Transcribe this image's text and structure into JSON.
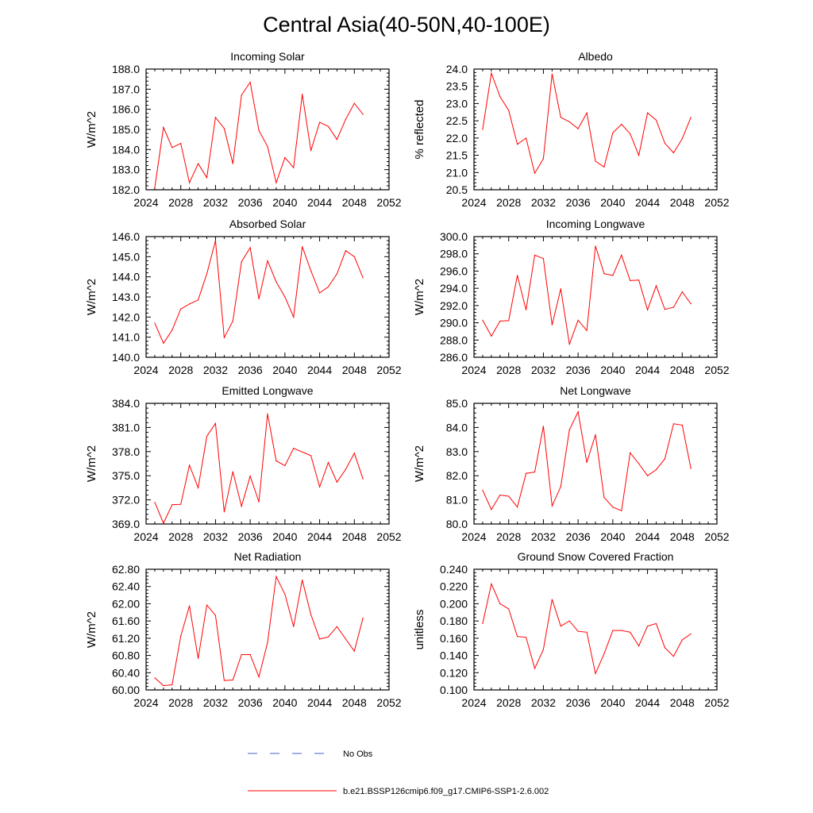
{
  "figure_title": "Central Asia(40-50N,40-100E)",
  "colors": {
    "model": "#ff0000",
    "obs": "#4b5fcf",
    "axis": "#000000"
  },
  "legend": {
    "obs_label": "No Obs",
    "model_label": "b.e21.BSSP126cmip6.f09_g17.CMIP6-SSP1-2.6.002"
  },
  "chart_data": [
    {
      "type": "line",
      "title": "Incoming Solar",
      "ylabel": "W/m^2",
      "xlim": [
        2024,
        2052
      ],
      "xticks": [
        "2024",
        "2028",
        "2032",
        "2036",
        "2040",
        "2044",
        "2048",
        "2052"
      ],
      "ylim": [
        182.0,
        188.0
      ],
      "yticks": [
        "182.0",
        "183.0",
        "184.0",
        "185.0",
        "186.0",
        "187.0",
        "188.0"
      ],
      "x": [
        2025,
        2026,
        2027,
        2028,
        2029,
        2030,
        2031,
        2032,
        2033,
        2034,
        2035,
        2036,
        2037,
        2038,
        2039,
        2040,
        2041,
        2042,
        2043,
        2044,
        2045,
        2046,
        2047,
        2048,
        2049
      ],
      "values": [
        182.1,
        185.1,
        184.1,
        184.3,
        182.35,
        183.3,
        182.6,
        185.6,
        185.05,
        183.3,
        186.7,
        187.35,
        184.95,
        184.15,
        182.35,
        183.6,
        183.1,
        186.75,
        183.95,
        185.35,
        185.15,
        184.5,
        185.5,
        186.3,
        185.75
      ]
    },
    {
      "type": "line",
      "title": "Albedo",
      "ylabel": "% reflected",
      "xlim": [
        2024,
        2052
      ],
      "xticks": [
        "2024",
        "2028",
        "2032",
        "2036",
        "2040",
        "2044",
        "2048",
        "2052"
      ],
      "ylim": [
        20.5,
        24.0
      ],
      "yticks": [
        "20.5",
        "21.0",
        "21.5",
        "22.0",
        "22.5",
        "23.0",
        "23.5",
        "24.0"
      ],
      "x": [
        2025,
        2026,
        2027,
        2028,
        2029,
        2030,
        2031,
        2032,
        2033,
        2034,
        2035,
        2036,
        2037,
        2038,
        2039,
        2040,
        2041,
        2042,
        2043,
        2044,
        2045,
        2046,
        2047,
        2048,
        2049
      ],
      "values": [
        22.25,
        23.88,
        23.2,
        22.8,
        21.82,
        22.0,
        20.98,
        21.4,
        23.86,
        22.6,
        22.47,
        22.27,
        22.73,
        21.33,
        21.16,
        22.15,
        22.4,
        22.12,
        21.5,
        22.73,
        22.52,
        21.85,
        21.57,
        21.98,
        22.6
      ]
    },
    {
      "type": "line",
      "title": "Absorbed Solar",
      "ylabel": "W/m^2",
      "xlim": [
        2024,
        2052
      ],
      "xticks": [
        "2024",
        "2028",
        "2032",
        "2036",
        "2040",
        "2044",
        "2048",
        "2052"
      ],
      "ylim": [
        140.0,
        146.0
      ],
      "yticks": [
        "140.0",
        "141.0",
        "142.0",
        "143.0",
        "144.0",
        "145.0",
        "146.0"
      ],
      "x": [
        2025,
        2026,
        2027,
        2028,
        2029,
        2030,
        2031,
        2032,
        2033,
        2034,
        2035,
        2036,
        2037,
        2038,
        2039,
        2040,
        2041,
        2042,
        2043,
        2044,
        2045,
        2046,
        2047,
        2048,
        2049
      ],
      "values": [
        141.7,
        140.7,
        141.35,
        142.4,
        142.65,
        142.85,
        144.15,
        145.8,
        140.98,
        141.8,
        144.75,
        145.45,
        142.9,
        144.8,
        143.75,
        143.0,
        142.0,
        145.5,
        144.3,
        143.2,
        143.5,
        144.15,
        145.3,
        145.0,
        143.95
      ]
    },
    {
      "type": "line",
      "title": "Incoming Longwave",
      "ylabel": "W/m^2",
      "xlim": [
        2024,
        2052
      ],
      "xticks": [
        "2024",
        "2028",
        "2032",
        "2036",
        "2040",
        "2044",
        "2048",
        "2052"
      ],
      "ylim": [
        286.0,
        300.0
      ],
      "yticks": [
        "286.0",
        "288.0",
        "290.0",
        "292.0",
        "294.0",
        "296.0",
        "298.0",
        "300.0"
      ],
      "x": [
        2025,
        2026,
        2027,
        2028,
        2029,
        2030,
        2031,
        2032,
        2033,
        2034,
        2035,
        2036,
        2037,
        2038,
        2039,
        2040,
        2041,
        2042,
        2043,
        2044,
        2045,
        2046,
        2047,
        2048,
        2049
      ],
      "values": [
        290.3,
        288.45,
        290.2,
        290.25,
        295.5,
        291.5,
        297.85,
        297.45,
        289.75,
        293.95,
        287.5,
        290.3,
        289.1,
        298.9,
        295.7,
        295.5,
        297.85,
        294.9,
        294.95,
        291.5,
        294.3,
        291.55,
        291.8,
        293.6,
        292.2
      ]
    },
    {
      "type": "line",
      "title": "Emitted Longwave",
      "ylabel": "W/m^2",
      "xlim": [
        2024,
        2052
      ],
      "xticks": [
        "2024",
        "2028",
        "2032",
        "2036",
        "2040",
        "2044",
        "2048",
        "2052"
      ],
      "ylim": [
        369.0,
        384.0
      ],
      "yticks": [
        "369.0",
        "372.0",
        "375.0",
        "378.0",
        "381.0",
        "384.0"
      ],
      "x": [
        2025,
        2026,
        2027,
        2028,
        2029,
        2030,
        2031,
        2032,
        2033,
        2034,
        2035,
        2036,
        2037,
        2038,
        2039,
        2040,
        2041,
        2042,
        2043,
        2044,
        2045,
        2046,
        2047,
        2048,
        2049
      ],
      "values": [
        371.7,
        369.1,
        371.4,
        371.45,
        376.3,
        373.5,
        379.9,
        381.5,
        370.5,
        375.5,
        371.2,
        374.95,
        371.75,
        382.7,
        376.85,
        376.25,
        378.4,
        377.95,
        377.5,
        373.6,
        376.65,
        374.2,
        375.8,
        377.8,
        374.6
      ]
    },
    {
      "type": "line",
      "title": "Net Longwave",
      "ylabel": "W/m^2",
      "xlim": [
        2024,
        2052
      ],
      "xticks": [
        "2024",
        "2028",
        "2032",
        "2036",
        "2040",
        "2044",
        "2048",
        "2052"
      ],
      "ylim": [
        80.0,
        85.0
      ],
      "yticks": [
        "80.0",
        "81.0",
        "82.0",
        "83.0",
        "84.0",
        "85.0"
      ],
      "x": [
        2025,
        2026,
        2027,
        2028,
        2029,
        2030,
        2031,
        2032,
        2033,
        2034,
        2035,
        2036,
        2037,
        2038,
        2039,
        2040,
        2041,
        2042,
        2043,
        2044,
        2045,
        2046,
        2047,
        2048,
        2049
      ],
      "values": [
        81.4,
        80.6,
        81.2,
        81.15,
        80.7,
        82.1,
        82.15,
        84.05,
        80.75,
        81.55,
        83.9,
        84.65,
        82.55,
        83.7,
        81.1,
        80.7,
        80.55,
        82.95,
        82.5,
        82.0,
        82.25,
        82.7,
        84.15,
        84.1,
        82.3
      ]
    },
    {
      "type": "line",
      "title": "Net Radiation",
      "ylabel": "W/m^2",
      "xlim": [
        2024,
        2052
      ],
      "xticks": [
        "2024",
        "2028",
        "2032",
        "2036",
        "2040",
        "2044",
        "2048",
        "2052"
      ],
      "ylim": [
        60.0,
        62.8
      ],
      "yticks": [
        "60.00",
        "60.40",
        "60.80",
        "61.20",
        "61.60",
        "62.00",
        "62.40",
        "62.80"
      ],
      "x": [
        2025,
        2026,
        2027,
        2028,
        2029,
        2030,
        2031,
        2032,
        2033,
        2034,
        2035,
        2036,
        2037,
        2038,
        2039,
        2040,
        2041,
        2042,
        2043,
        2044,
        2045,
        2046,
        2047,
        2048,
        2049
      ],
      "values": [
        60.28,
        60.1,
        60.12,
        61.25,
        61.95,
        60.73,
        61.97,
        61.73,
        60.22,
        60.23,
        60.82,
        60.82,
        60.3,
        61.1,
        62.63,
        62.22,
        61.47,
        62.55,
        61.75,
        61.18,
        61.23,
        61.47,
        61.18,
        60.9,
        61.67
      ]
    },
    {
      "type": "line",
      "title": "Ground Snow Covered Fraction",
      "ylabel": "unitless",
      "xlim": [
        2024,
        2052
      ],
      "xticks": [
        "2024",
        "2028",
        "2032",
        "2036",
        "2040",
        "2044",
        "2048",
        "2052"
      ],
      "ylim": [
        0.1,
        0.24
      ],
      "yticks": [
        "0.100",
        "0.120",
        "0.140",
        "0.160",
        "0.180",
        "0.200",
        "0.220",
        "0.240"
      ],
      "x": [
        2025,
        2026,
        2027,
        2028,
        2029,
        2030,
        2031,
        2032,
        2033,
        2034,
        2035,
        2036,
        2037,
        2038,
        2039,
        2040,
        2041,
        2042,
        2043,
        2044,
        2045,
        2046,
        2047,
        2048,
        2049
      ],
      "values": [
        0.177,
        0.223,
        0.2,
        0.194,
        0.162,
        0.161,
        0.125,
        0.147,
        0.205,
        0.174,
        0.18,
        0.168,
        0.167,
        0.119,
        0.142,
        0.169,
        0.169,
        0.167,
        0.151,
        0.174,
        0.177,
        0.149,
        0.139,
        0.158,
        0.165
      ]
    }
  ]
}
